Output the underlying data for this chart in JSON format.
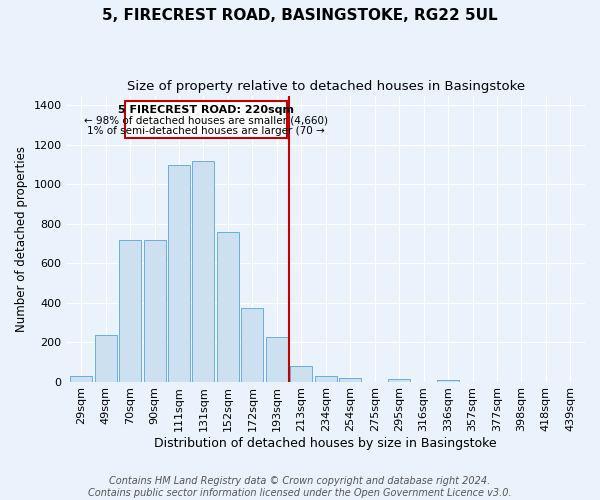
{
  "title": "5, FIRECREST ROAD, BASINGSTOKE, RG22 5UL",
  "subtitle": "Size of property relative to detached houses in Basingstoke",
  "xlabel": "Distribution of detached houses by size in Basingstoke",
  "ylabel": "Number of detached properties",
  "categories": [
    "29sqm",
    "49sqm",
    "70sqm",
    "90sqm",
    "111sqm",
    "131sqm",
    "152sqm",
    "172sqm",
    "193sqm",
    "213sqm",
    "234sqm",
    "254sqm",
    "275sqm",
    "295sqm",
    "316sqm",
    "336sqm",
    "357sqm",
    "377sqm",
    "398sqm",
    "418sqm",
    "439sqm"
  ],
  "values": [
    30,
    237,
    720,
    720,
    1100,
    1120,
    760,
    375,
    225,
    80,
    30,
    20,
    0,
    15,
    0,
    8,
    0,
    0,
    0,
    0,
    0
  ],
  "bar_color": "#cde0f0",
  "bar_edge_color": "#6aaed6",
  "annotation_line1": "5 FIRECREST ROAD: 220sqm",
  "annotation_line2": "← 98% of detached houses are smaller (4,660)",
  "annotation_line3": "1% of semi-detached houses are larger (70 →",
  "annotation_box_color": "#ffffff",
  "annotation_box_edge": "#c00000",
  "vline_color": "#c00000",
  "vline_x_index": 9,
  "footer_line1": "Contains HM Land Registry data © Crown copyright and database right 2024.",
  "footer_line2": "Contains public sector information licensed under the Open Government Licence v3.0.",
  "ylim": [
    0,
    1450
  ],
  "yticks": [
    0,
    200,
    400,
    600,
    800,
    1000,
    1200,
    1400
  ],
  "bg_color": "#eaf3fb",
  "grid_color": "#ffffff",
  "title_fontsize": 11,
  "subtitle_fontsize": 9.5,
  "xlabel_fontsize": 9,
  "ylabel_fontsize": 8.5,
  "tick_fontsize": 8,
  "footer_fontsize": 7
}
